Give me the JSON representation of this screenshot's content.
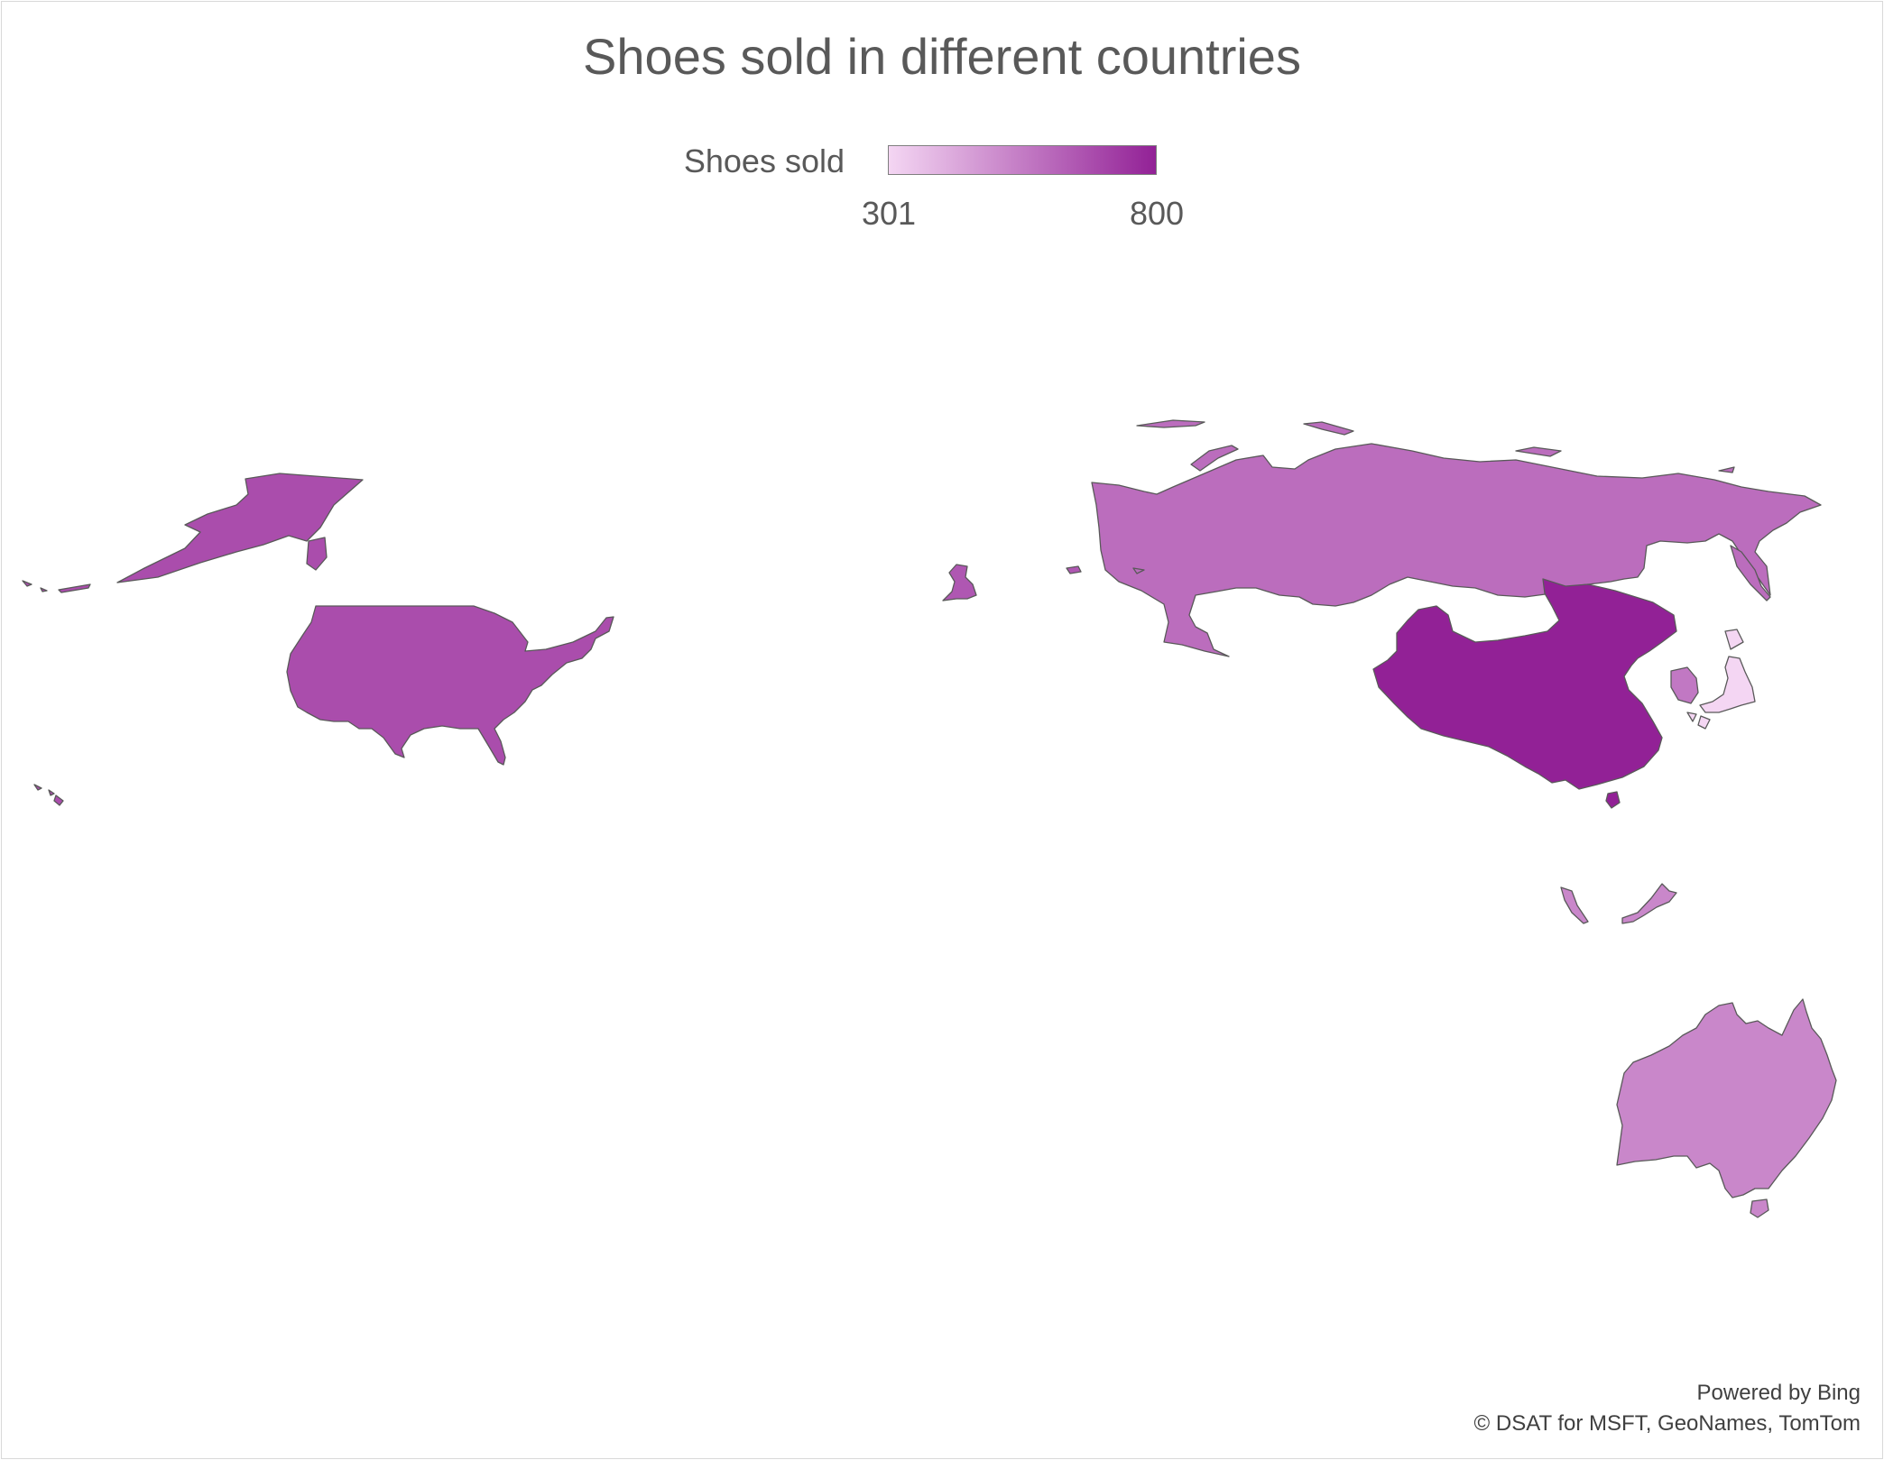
{
  "chart": {
    "title": "Shoes sold in different countries",
    "legend": {
      "label": "Shoes sold",
      "min": "301",
      "max": "800",
      "color_min": "#f4d6f3",
      "color_max": "#922196"
    }
  },
  "chart_data": {
    "type": "choropleth",
    "title": "Shoes sold in different countries",
    "value_label": "Shoes sold",
    "scale": {
      "min": 301,
      "max": 800,
      "colors": [
        "#f4d6f3",
        "#922196"
      ]
    },
    "regions": [
      {
        "name": "United States",
        "value": 680
      },
      {
        "name": "United Kingdom",
        "value": 650
      },
      {
        "name": "Russia",
        "value": 590
      },
      {
        "name": "China",
        "value": 800
      },
      {
        "name": "South Korea",
        "value": 560
      },
      {
        "name": "Japan",
        "value": 301
      },
      {
        "name": "Malaysia",
        "value": 520
      },
      {
        "name": "Australia",
        "value": 520
      }
    ]
  },
  "attribution": {
    "line1": "Powered by Bing",
    "line2": "© DSAT for MSFT, GeoNames, TomTom"
  }
}
